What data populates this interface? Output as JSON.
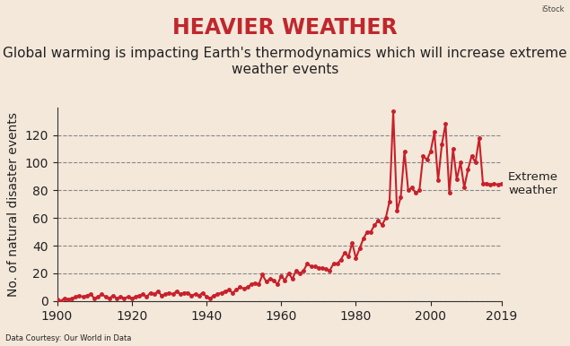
{
  "chart_data": {
    "type": "line",
    "title": "HEAVIER WEATHER",
    "subtitle": "Global warming is impacting Earth's thermodynamics which will increase extreme weather events",
    "y_label": "No. of natural disaster events",
    "annotation": "Extreme weather",
    "source": "Data Courtesy: Our World in Data",
    "credit": "iStock",
    "x": [
      1900,
      1901,
      1902,
      1903,
      1904,
      1905,
      1906,
      1907,
      1908,
      1909,
      1910,
      1911,
      1912,
      1913,
      1914,
      1915,
      1916,
      1917,
      1918,
      1919,
      1920,
      1921,
      1922,
      1923,
      1924,
      1925,
      1926,
      1927,
      1928,
      1929,
      1930,
      1931,
      1932,
      1933,
      1934,
      1935,
      1936,
      1937,
      1938,
      1939,
      1940,
      1941,
      1942,
      1943,
      1944,
      1945,
      1946,
      1947,
      1948,
      1949,
      1950,
      1951,
      1952,
      1953,
      1954,
      1955,
      1956,
      1957,
      1958,
      1959,
      1960,
      1961,
      1962,
      1963,
      1964,
      1965,
      1966,
      1967,
      1968,
      1969,
      1970,
      1971,
      1972,
      1973,
      1974,
      1975,
      1976,
      1977,
      1978,
      1979,
      1980,
      1981,
      1982,
      1983,
      1984,
      1985,
      1986,
      1987,
      1988,
      1989,
      1990,
      1991,
      1992,
      1993,
      1994,
      1995,
      1996,
      1997,
      1998,
      1999,
      2000,
      2001,
      2002,
      2003,
      2004,
      2005,
      2006,
      2007,
      2008,
      2009,
      2010,
      2011,
      2012,
      2013,
      2014,
      2015,
      2016,
      2017,
      2018,
      2019
    ],
    "values": [
      1,
      0,
      2,
      1,
      2,
      3,
      4,
      3,
      4,
      5,
      2,
      3,
      5,
      3,
      2,
      4,
      2,
      3,
      2,
      3,
      2,
      3,
      4,
      5,
      3,
      6,
      5,
      7,
      4,
      5,
      6,
      5,
      7,
      5,
      6,
      6,
      4,
      5,
      4,
      6,
      3,
      2,
      4,
      5,
      6,
      7,
      8,
      6,
      8,
      10,
      9,
      10,
      12,
      13,
      12,
      19,
      14,
      16,
      15,
      12,
      18,
      15,
      20,
      16,
      22,
      20,
      22,
      27,
      25,
      25,
      24,
      24,
      23,
      22,
      27,
      27,
      30,
      35,
      32,
      42,
      31,
      38,
      45,
      50,
      50,
      55,
      58,
      55,
      60,
      72,
      137,
      65,
      75,
      108,
      80,
      82,
      78,
      80,
      105,
      102,
      108,
      122,
      87,
      113,
      128,
      78,
      110,
      88,
      100,
      82,
      95,
      105,
      100,
      118,
      85,
      85,
      84,
      85,
      84,
      85
    ],
    "color": "#c8202a",
    "marker": "o",
    "xlim": [
      1900,
      2019
    ],
    "xticks": [
      1900,
      1920,
      1940,
      1960,
      1980,
      2000,
      2019
    ],
    "ylim": [
      0,
      140
    ],
    "yticks": [
      0,
      20,
      40,
      60,
      80,
      100,
      120
    ],
    "grid": true
  }
}
